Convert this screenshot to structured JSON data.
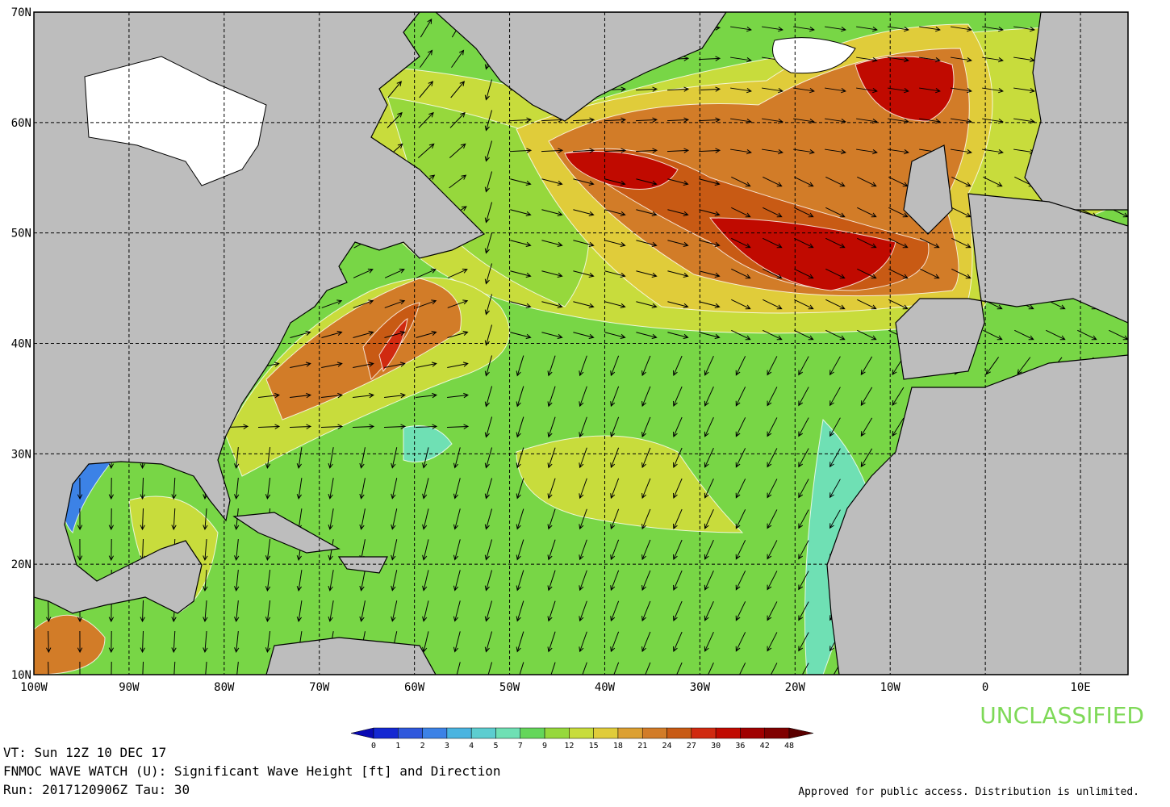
{
  "map": {
    "lat_labels": [
      "70N",
      "60N",
      "50N",
      "40N",
      "30N",
      "20N",
      "10N"
    ],
    "lon_labels": [
      "100W",
      "90W",
      "80W",
      "70W",
      "60W",
      "50W",
      "40W",
      "30W",
      "20W",
      "10W",
      "0",
      "10E"
    ],
    "classification": "UNCLASSIFIED"
  },
  "colorbar": {
    "levels": [
      0,
      1,
      2,
      3,
      4,
      5,
      7,
      9,
      12,
      15,
      18,
      21,
      24,
      27,
      30,
      36,
      42,
      48
    ],
    "colors": [
      "#0a0ab4",
      "#1428d2",
      "#2f58dc",
      "#3c82e6",
      "#4ab4e0",
      "#5ccdd0",
      "#6fe0b4",
      "#64d65a",
      "#96d83c",
      "#c8dc3c",
      "#e0cc3a",
      "#dca032",
      "#d27c28",
      "#c85a14",
      "#d02a10",
      "#c00a00",
      "#a00000",
      "#800000",
      "#5a0000"
    ]
  },
  "footer": {
    "valid_time": "VT: Sun 12Z 10 DEC 17",
    "product": "FNMOC WAVE WATCH (U): Significant Wave Height [ft] and Direction",
    "run": "Run: 2017120906Z Tau: 30",
    "release": "Approved for public access. Distribution is unlimited."
  }
}
